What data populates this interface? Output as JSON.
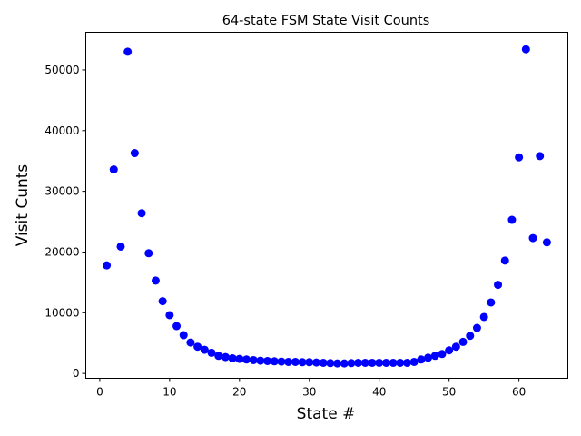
{
  "chart_data": {
    "type": "scatter",
    "title": "64-state FSM State Visit Counts",
    "xlabel": "State #",
    "ylabel": "Visit Cunts",
    "xlim": [
      -2,
      67
    ],
    "ylim": [
      -800,
      56200
    ],
    "x_ticks": [
      0,
      10,
      20,
      30,
      40,
      50,
      60
    ],
    "y_ticks": [
      0,
      10000,
      20000,
      30000,
      40000,
      50000
    ],
    "grid": false,
    "marker_color": "#0000ff",
    "series": [
      {
        "x": [
          1,
          2,
          3,
          4,
          5,
          6,
          7,
          8,
          9,
          10,
          11,
          12,
          13,
          14,
          15,
          16,
          17,
          18,
          19,
          20,
          21,
          22,
          23,
          24,
          25,
          26,
          27,
          28,
          29,
          30,
          31,
          32,
          33,
          34,
          35,
          36,
          37,
          38,
          39,
          40,
          41,
          42,
          43,
          44,
          45,
          46,
          47,
          48,
          49,
          50,
          51,
          52,
          53,
          54,
          55,
          56,
          57,
          58,
          59,
          60,
          61,
          62,
          63,
          64
        ],
        "y": [
          17800,
          33600,
          20900,
          53000,
          36300,
          26400,
          19800,
          15300,
          11900,
          9600,
          7800,
          6300,
          5100,
          4400,
          3900,
          3400,
          2900,
          2700,
          2500,
          2400,
          2300,
          2200,
          2100,
          2050,
          2000,
          1950,
          1900,
          1900,
          1850,
          1850,
          1800,
          1750,
          1700,
          1650,
          1650,
          1700,
          1750,
          1750,
          1750,
          1750,
          1750,
          1750,
          1750,
          1750,
          1900,
          2300,
          2600,
          2900,
          3200,
          3800,
          4400,
          5200,
          6200,
          7500,
          9300,
          11700,
          14600,
          18600,
          25300,
          35600,
          53400,
          22300,
          35800,
          21600
        ]
      }
    ]
  }
}
